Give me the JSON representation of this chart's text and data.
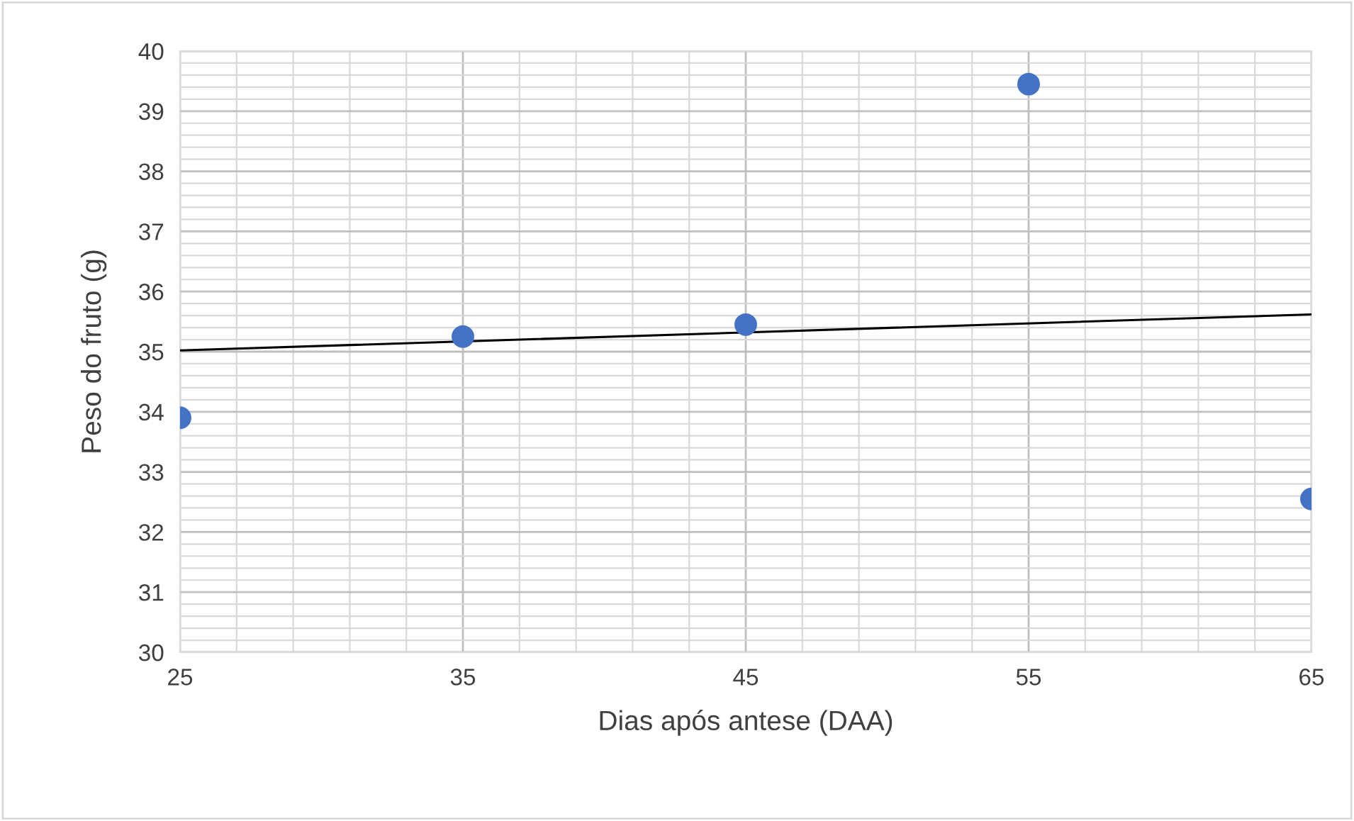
{
  "chart_data": {
    "type": "scatter",
    "xlabel": "Dias após antese (DAA)",
    "ylabel": "Peso do fruto (g)",
    "series": [
      {
        "type": "scatter",
        "color": "#4472c4",
        "x": [
          25,
          35,
          45,
          55,
          65
        ],
        "values": [
          33.9,
          35.25,
          35.45,
          39.45,
          32.55
        ],
        "marker": "circle"
      },
      {
        "type": "line",
        "color": "#000000",
        "x": [
          25,
          65
        ],
        "values": [
          35.02,
          35.62
        ],
        "line_style": "solid",
        "marker": "none"
      }
    ],
    "xlim": [
      25,
      65
    ],
    "xticks": [
      25,
      35,
      45,
      55,
      65
    ],
    "ylim": [
      30,
      40
    ],
    "yticks": [
      30,
      31,
      32,
      33,
      34,
      35,
      36,
      37,
      38,
      39,
      40
    ],
    "grid": true,
    "legend": false
  }
}
